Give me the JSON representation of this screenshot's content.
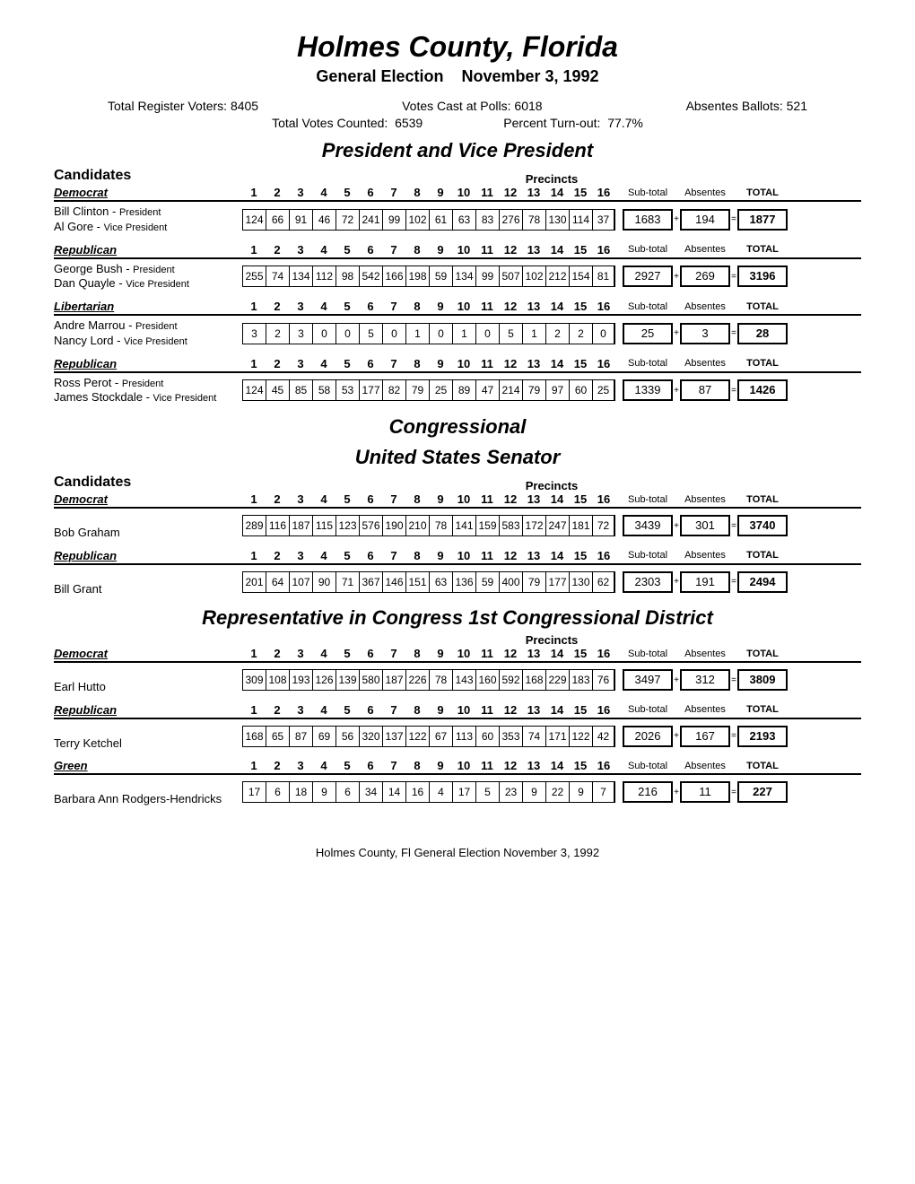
{
  "title": "Holmes County, Florida",
  "subtitle_left": "General Election",
  "subtitle_right": "November 3, 1992",
  "stats": {
    "registered_label": "Total Register Voters:",
    "registered": "8405",
    "cast_label": "Votes Cast at Polls:",
    "cast": "6018",
    "absentee_label": "Absentes Ballots:",
    "absentee": "521",
    "counted_label": "Total Votes Counted:",
    "counted": "6539",
    "turnout_label": "Percent Turn-out:",
    "turnout": "77.7%"
  },
  "labels": {
    "candidates": "Candidates",
    "precincts": "Precincts",
    "subtotal": "Sub-total",
    "absentes": "Absentes",
    "total": "TOTAL"
  },
  "precinct_nums": [
    "1",
    "2",
    "3",
    "4",
    "5",
    "6",
    "7",
    "8",
    "9",
    "10",
    "11",
    "12",
    "13",
    "14",
    "15",
    "16"
  ],
  "section1": {
    "title": "President and Vice President",
    "races": [
      {
        "party": "Democrat",
        "candidate_html1": "Bill Clinton - ",
        "candidate_sm1": "President",
        "candidate_html2": "Al Gore - ",
        "candidate_sm2": "Vice President",
        "cells": [
          "124",
          "66",
          "91",
          "46",
          "72",
          "241",
          "99",
          "102",
          "61",
          "63",
          "83",
          "276",
          "78",
          "130",
          "114",
          "37"
        ],
        "subtotal": "1683",
        "absentes": "194",
        "total": "1877"
      },
      {
        "party": "Republican",
        "candidate_html1": "George Bush - ",
        "candidate_sm1": "President",
        "candidate_html2": "Dan Quayle - ",
        "candidate_sm2": "Vice President",
        "cells": [
          "255",
          "74",
          "134",
          "112",
          "98",
          "542",
          "166",
          "198",
          "59",
          "134",
          "99",
          "507",
          "102",
          "212",
          "154",
          "81"
        ],
        "subtotal": "2927",
        "absentes": "269",
        "total": "3196"
      },
      {
        "party": "Libertarian",
        "candidate_html1": "Andre Marrou - ",
        "candidate_sm1": "President",
        "candidate_html2": "Nancy Lord - ",
        "candidate_sm2": "Vice President",
        "cells": [
          "3",
          "2",
          "3",
          "0",
          "0",
          "5",
          "0",
          "1",
          "0",
          "1",
          "0",
          "5",
          "1",
          "2",
          "2",
          "0"
        ],
        "subtotal": "25",
        "absentes": "3",
        "total": "28"
      },
      {
        "party": "Republican",
        "candidate_html1": "Ross Perot - ",
        "candidate_sm1": "President",
        "candidate_html2": "James Stockdale - ",
        "candidate_sm2": "Vice President",
        "cells": [
          "124",
          "45",
          "85",
          "58",
          "53",
          "177",
          "82",
          "79",
          "25",
          "89",
          "47",
          "214",
          "79",
          "97",
          "60",
          "25"
        ],
        "subtotal": "1339",
        "absentes": "87",
        "total": "1426"
      }
    ]
  },
  "section2": {
    "title1": "Congressional",
    "title2": "United States Senator",
    "races": [
      {
        "party": "Democrat",
        "candidate": "Bob Graham",
        "cells": [
          "289",
          "116",
          "187",
          "115",
          "123",
          "576",
          "190",
          "210",
          "78",
          "141",
          "159",
          "583",
          "172",
          "247",
          "181",
          "72"
        ],
        "subtotal": "3439",
        "absentes": "301",
        "total": "3740"
      },
      {
        "party": "Republican",
        "candidate": "Bill Grant",
        "cells": [
          "201",
          "64",
          "107",
          "90",
          "71",
          "367",
          "146",
          "151",
          "63",
          "136",
          "59",
          "400",
          "79",
          "177",
          "130",
          "62"
        ],
        "subtotal": "2303",
        "absentes": "191",
        "total": "2494"
      }
    ]
  },
  "section3": {
    "title": "Representative in Congress 1st Congressional District",
    "races": [
      {
        "party": "Democrat",
        "candidate": "Earl Hutto",
        "cells": [
          "309",
          "108",
          "193",
          "126",
          "139",
          "580",
          "187",
          "226",
          "78",
          "143",
          "160",
          "592",
          "168",
          "229",
          "183",
          "76"
        ],
        "subtotal": "3497",
        "absentes": "312",
        "total": "3809"
      },
      {
        "party": "Republican",
        "candidate": "Terry Ketchel",
        "cells": [
          "168",
          "65",
          "87",
          "69",
          "56",
          "320",
          "137",
          "122",
          "67",
          "113",
          "60",
          "353",
          "74",
          "171",
          "122",
          "42"
        ],
        "subtotal": "2026",
        "absentes": "167",
        "total": "2193"
      },
      {
        "party": "Green",
        "candidate": "Barbara Ann Rodgers-Hendricks",
        "cells": [
          "17",
          "6",
          "18",
          "9",
          "6",
          "34",
          "14",
          "16",
          "4",
          "17",
          "5",
          "23",
          "9",
          "22",
          "9",
          "7"
        ],
        "subtotal": "216",
        "absentes": "11",
        "total": "227"
      }
    ]
  },
  "footer": "Holmes County, Fl General Election November 3, 1992"
}
